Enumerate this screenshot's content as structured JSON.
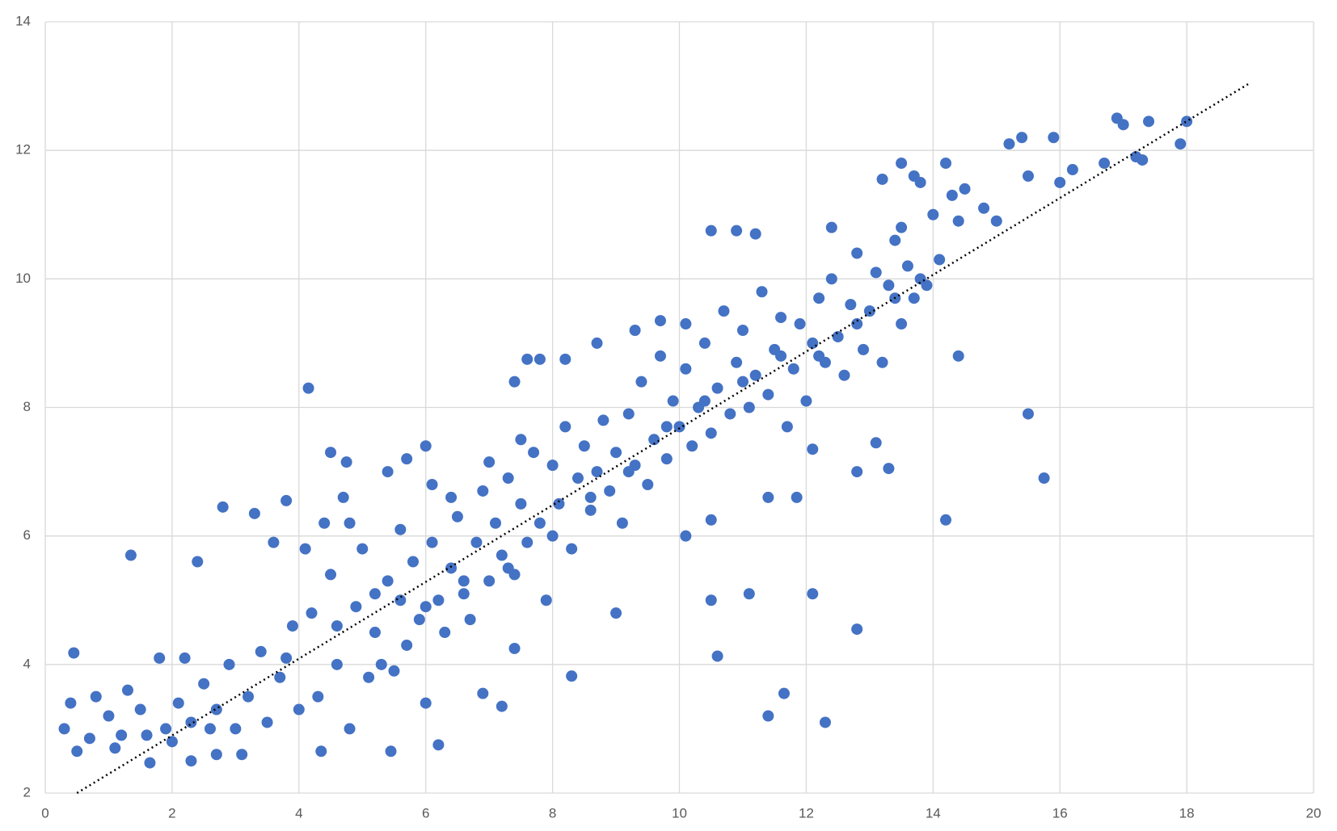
{
  "chart_data": {
    "type": "scatter",
    "color": "#4472c4",
    "grid": true,
    "xlim": [
      0,
      20
    ],
    "ylim": [
      2,
      14
    ],
    "xticks": [
      0,
      2,
      4,
      6,
      8,
      10,
      12,
      14,
      16,
      18,
      20
    ],
    "yticks": [
      2,
      4,
      6,
      8,
      10,
      12,
      14
    ],
    "trendline": {
      "x": [
        0.5,
        19
      ],
      "y": [
        2,
        13.05
      ],
      "color": "#000000",
      "style": "dotted"
    },
    "x": [
      4.15,
      1.35,
      2.8,
      10.5,
      10.6,
      11.1,
      12.1,
      12.8,
      11.4,
      11.65,
      12.3,
      14.2,
      15.5,
      15.75,
      14.4,
      8.3,
      0.45,
      0.3,
      1.65,
      6.2,
      17.9,
      18.0,
      16.9,
      17.4,
      15.4,
      15.9,
      10.5,
      10.9,
      11.2,
      12.4,
      13.5,
      14.2,
      6.0,
      5.7,
      4.5,
      4.75,
      3.8,
      3.3,
      7.6,
      7.8,
      8.2,
      8.7,
      9.3,
      9.7,
      10.1,
      7.4,
      5.4,
      2.4,
      4.7,
      11.85,
      12.8,
      13.3,
      13.1,
      12.1,
      11.4,
      10.5,
      10.1,
      9.0,
      7.4,
      6.9,
      7.2,
      5.45,
      4.35,
      2.3,
      0.5,
      1.1,
      2.7,
      3.1,
      1.0,
      1.2,
      1.5,
      0.8,
      1.9,
      2.1,
      2.3,
      2.5,
      2.7,
      2.9,
      3.0,
      3.2,
      3.4,
      3.5,
      3.7,
      3.9,
      4.0,
      4.2,
      4.3,
      4.5,
      4.6,
      4.8,
      4.9,
      5.0,
      5.1,
      5.2,
      5.4,
      5.5,
      5.6,
      5.7,
      5.8,
      5.9,
      6.0,
      6.1,
      6.2,
      6.3,
      6.4,
      6.5,
      6.6,
      6.7,
      6.8,
      6.9,
      7.0,
      7.1,
      7.2,
      7.3,
      7.4,
      7.5,
      7.6,
      7.7,
      7.8,
      7.9,
      8.0,
      8.1,
      8.2,
      8.3,
      8.4,
      8.5,
      8.6,
      8.7,
      8.8,
      8.9,
      9.0,
      9.1,
      9.2,
      9.3,
      9.4,
      9.5,
      9.6,
      9.7,
      9.8,
      9.9,
      10.0,
      10.1,
      10.2,
      10.3,
      10.4,
      10.5,
      10.6,
      10.7,
      10.8,
      10.9,
      11.0,
      11.1,
      11.2,
      11.3,
      11.4,
      11.5,
      11.6,
      11.7,
      11.8,
      11.9,
      12.0,
      12.1,
      12.2,
      12.3,
      12.4,
      12.5,
      12.6,
      12.7,
      12.8,
      12.9,
      13.0,
      13.1,
      13.2,
      13.3,
      13.4,
      13.5,
      13.6,
      13.7,
      13.8,
      13.9,
      14.0,
      14.1,
      14.3,
      14.5,
      14.8,
      15.0,
      15.2,
      15.5,
      16.0,
      16.2,
      16.7,
      17.0,
      17.2,
      17.3,
      13.2,
      13.7,
      14.4,
      13.5,
      0.4,
      0.7,
      1.3,
      1.6,
      1.8,
      2.0,
      2.2,
      2.6,
      3.6,
      4.1,
      4.4,
      4.8,
      5.3,
      5.6,
      6.1,
      6.4,
      7.0,
      7.5,
      3.8,
      4.6,
      5.2,
      6.0,
      6.6,
      7.3,
      8.0,
      8.6,
      9.2,
      9.8,
      10.4,
      11.0,
      11.6,
      12.2,
      12.8,
      13.4,
      13.8
    ],
    "values": [
      8.3,
      5.7,
      6.45,
      5.0,
      4.13,
      5.1,
      5.1,
      4.55,
      3.2,
      3.55,
      3.1,
      6.25,
      7.9,
      6.9,
      8.8,
      3.82,
      4.18,
      3.0,
      2.47,
      2.75,
      12.1,
      12.45,
      12.5,
      12.45,
      12.2,
      12.2,
      10.75,
      10.75,
      10.7,
      10.8,
      11.8,
      11.8,
      7.4,
      7.2,
      7.3,
      7.15,
      6.55,
      6.35,
      8.75,
      8.75,
      8.75,
      9.0,
      9.2,
      9.35,
      9.3,
      8.4,
      7.0,
      5.6,
      6.6,
      6.6,
      7.0,
      7.05,
      7.45,
      7.35,
      6.6,
      6.25,
      6.0,
      4.8,
      4.25,
      3.55,
      3.35,
      2.65,
      2.65,
      2.5,
      2.65,
      2.7,
      2.6,
      2.6,
      3.2,
      2.9,
      3.3,
      3.5,
      3.0,
      3.4,
      3.1,
      3.7,
      3.3,
      4.0,
      3.0,
      3.5,
      4.2,
      3.1,
      3.8,
      4.6,
      3.3,
      4.8,
      3.5,
      5.4,
      4.0,
      3.0,
      4.9,
      5.8,
      3.8,
      4.5,
      5.3,
      3.9,
      5.0,
      4.3,
      5.6,
      4.7,
      3.4,
      5.9,
      5.0,
      4.5,
      5.5,
      6.3,
      5.1,
      4.7,
      5.9,
      6.7,
      5.3,
      6.2,
      5.7,
      6.9,
      5.4,
      6.5,
      5.9,
      7.3,
      6.2,
      5.0,
      7.1,
      6.5,
      7.7,
      5.8,
      6.9,
      7.4,
      6.4,
      7.0,
      7.8,
      6.7,
      7.3,
      6.2,
      7.9,
      7.1,
      8.4,
      6.8,
      7.5,
      8.8,
      7.2,
      8.1,
      7.7,
      8.6,
      7.4,
      8.0,
      9.0,
      7.6,
      8.3,
      9.5,
      7.9,
      8.7,
      9.2,
      8.0,
      8.5,
      9.8,
      8.2,
      8.9,
      9.4,
      7.7,
      8.6,
      9.3,
      8.1,
      9.0,
      9.7,
      8.7,
      10.0,
      9.1,
      8.5,
      9.6,
      10.4,
      8.9,
      9.5,
      10.1,
      8.7,
      9.9,
      10.6,
      9.3,
      10.2,
      9.7,
      11.5,
      9.9,
      11.0,
      10.3,
      11.3,
      11.4,
      11.1,
      10.9,
      12.1,
      11.6,
      11.5,
      11.7,
      11.8,
      12.4,
      11.9,
      11.85,
      11.55,
      11.6,
      10.9,
      10.8,
      3.4,
      2.85,
      3.6,
      2.9,
      4.1,
      2.8,
      4.1,
      3.0,
      5.9,
      5.8,
      6.2,
      6.2,
      4.0,
      6.1,
      6.8,
      6.6,
      7.15,
      7.5,
      4.1,
      4.6,
      5.1,
      4.9,
      5.3,
      5.5,
      6.0,
      6.6,
      7.0,
      7.7,
      8.1,
      8.4,
      8.8,
      8.8,
      9.3,
      9.7,
      10.0
    ]
  }
}
